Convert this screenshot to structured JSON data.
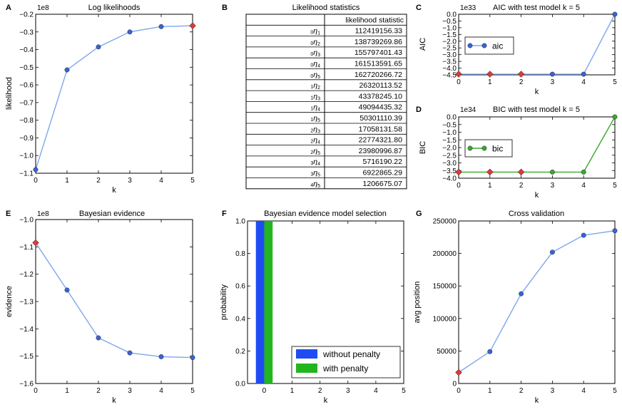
{
  "chart_data": [
    {
      "panel": "A",
      "type": "line",
      "title": "Log likelihoods",
      "xlabel": "k",
      "ylabel": "likelihood",
      "multiplier": "1e8",
      "x": [
        0,
        1,
        2,
        3,
        4,
        5
      ],
      "series": [
        {
          "name": "likelihood",
          "values": [
            -1.08,
            -0.515,
            -0.385,
            -0.3,
            -0.27,
            -0.265
          ],
          "color": "#3b63d6",
          "line_color": "#7ea6ee"
        }
      ],
      "highlight": {
        "index": 5,
        "color": "#d93b3b"
      },
      "xlim": [
        0,
        5
      ],
      "ylim": [
        -1.1,
        -0.2
      ],
      "yticks": [
        -1.1,
        -1.0,
        -0.9,
        -0.8,
        -0.7,
        -0.6,
        -0.5,
        -0.4,
        -0.3,
        -0.2
      ],
      "yticklabels": [
        "−1.1",
        "−1.0",
        "−0.9",
        "−0.8",
        "−0.7",
        "−0.6",
        "−0.5",
        "−0.4",
        "−0.3",
        "−0.2"
      ]
    },
    {
      "panel": "B",
      "type": "table",
      "title": "Likelihood statistics",
      "header": "likelihood statistic",
      "rows": [
        {
          "pre": "0",
          "sub": "1",
          "value": "112419156.33"
        },
        {
          "pre": "0",
          "sub": "2",
          "value": "138739269.86"
        },
        {
          "pre": "0",
          "sub": "3",
          "value": "155797401.43"
        },
        {
          "pre": "0",
          "sub": "4",
          "value": "161513591.65"
        },
        {
          "pre": "0",
          "sub": "5",
          "value": "162720266.72"
        },
        {
          "pre": "1",
          "sub": "2",
          "value": "26320113.52"
        },
        {
          "pre": "1",
          "sub": "3",
          "value": "43378245.10"
        },
        {
          "pre": "1",
          "sub": "4",
          "value": "49094435.32"
        },
        {
          "pre": "1",
          "sub": "5",
          "value": "50301110.39"
        },
        {
          "pre": "2",
          "sub": "3",
          "value": "17058131.58"
        },
        {
          "pre": "2",
          "sub": "4",
          "value": "22774321.80"
        },
        {
          "pre": "2",
          "sub": "5",
          "value": "23980996.87"
        },
        {
          "pre": "3",
          "sub": "4",
          "value": "5716190.22"
        },
        {
          "pre": "3",
          "sub": "5",
          "value": "6922865.29"
        },
        {
          "pre": "4",
          "sub": "5",
          "value": "1206675.07"
        }
      ]
    },
    {
      "panel": "C",
      "type": "line",
      "title": "AIC with test model k = 5",
      "xlabel": "k",
      "ylabel": "AIC",
      "multiplier": "1e33",
      "x": [
        0,
        1,
        2,
        3,
        4,
        5
      ],
      "series": [
        {
          "name": "aic",
          "values": [
            -4.45,
            -4.45,
            -4.45,
            -4.45,
            -4.45,
            0.0
          ],
          "color": "#3b63d6",
          "line_color": "#7ea6ee"
        }
      ],
      "highlight_indices": [
        0,
        1,
        2
      ],
      "highlight_color": "#d93b3b",
      "legend": "aic",
      "xlim": [
        0,
        5
      ],
      "ylim": [
        -4.5,
        0.0
      ],
      "yticks": [
        -4.5,
        -4.0,
        -3.5,
        -3.0,
        -2.5,
        -2.0,
        -1.5,
        -1.0,
        -0.5,
        0.0
      ],
      "yticklabels": [
        "−4.5",
        "−4.0",
        "−3.5",
        "−3.0",
        "−2.5",
        "−2.0",
        "−1.5",
        "−1.0",
        "−0.5",
        "0.0"
      ]
    },
    {
      "panel": "D",
      "type": "line",
      "title": "BIC with test model k = 5",
      "xlabel": "k",
      "ylabel": "BIC",
      "multiplier": "1e34",
      "x": [
        0,
        1,
        2,
        3,
        4,
        5
      ],
      "series": [
        {
          "name": "bic",
          "values": [
            -3.6,
            -3.6,
            -3.6,
            -3.6,
            -3.6,
            0.0
          ],
          "color": "#3aa82f",
          "line_color": "#3aa82f"
        }
      ],
      "highlight_indices": [
        0,
        1,
        2
      ],
      "highlight_color": "#d93b3b",
      "legend": "bic",
      "xlim": [
        0,
        5
      ],
      "ylim": [
        -4.0,
        0.0
      ],
      "yticks": [
        -4.0,
        -3.5,
        -3.0,
        -2.5,
        -2.0,
        -1.5,
        -1.0,
        -0.5,
        0.0
      ],
      "yticklabels": [
        "−4.0",
        "−3.5",
        "−3.0",
        "−2.5",
        "−2.0",
        "−1.5",
        "−1.0",
        "−0.5",
        "0.0"
      ]
    },
    {
      "panel": "E",
      "type": "line",
      "title": "Bayesian evidence",
      "xlabel": "k",
      "ylabel": "evidence",
      "multiplier": "1e8",
      "x": [
        0,
        1,
        2,
        3,
        4,
        5
      ],
      "series": [
        {
          "name": "evidence",
          "values": [
            -1.085,
            -1.258,
            -1.433,
            -1.488,
            -1.502,
            -1.505
          ],
          "color": "#3b63d6",
          "line_color": "#7ea6ee"
        }
      ],
      "highlight": {
        "index": 0,
        "color": "#d93b3b"
      },
      "xlim": [
        0,
        5
      ],
      "ylim": [
        -1.6,
        -1.0
      ],
      "yticks": [
        -1.6,
        -1.5,
        -1.4,
        -1.3,
        -1.2,
        -1.1,
        -1.0
      ],
      "yticklabels": [
        "−1.6",
        "−1.5",
        "−1.4",
        "−1.3",
        "−1.2",
        "−1.1",
        "−1.0"
      ]
    },
    {
      "panel": "F",
      "type": "bar",
      "title": "Bayesian evidence model selection",
      "xlabel": "k",
      "ylabel": "probability",
      "categories": [
        0,
        1,
        2,
        3,
        4,
        5
      ],
      "series": [
        {
          "name": "without penalty",
          "values": [
            1.0,
            0,
            0,
            0,
            0,
            0
          ],
          "color": "#1f4cf2"
        },
        {
          "name": "with penalty",
          "values": [
            1.0,
            0,
            0,
            0,
            0,
            0
          ],
          "color": "#22b51f"
        }
      ],
      "xlim": [
        -0.6,
        5
      ],
      "ylim": [
        0,
        1.0
      ],
      "yticks": [
        0.0,
        0.2,
        0.4,
        0.6,
        0.8,
        1.0
      ],
      "yticklabels": [
        "0.0",
        "0.2",
        "0.4",
        "0.6",
        "0.8",
        "1.0"
      ],
      "legend_position": "bottom-right"
    },
    {
      "panel": "G",
      "type": "line",
      "title": "Cross validation",
      "xlabel": "k",
      "ylabel": "avg position",
      "x": [
        0,
        1,
        2,
        3,
        4,
        5
      ],
      "series": [
        {
          "name": "avg position",
          "values": [
            17000,
            49000,
            138000,
            202000,
            228000,
            235000
          ],
          "color": "#3b63d6",
          "line_color": "#7ea6ee"
        }
      ],
      "highlight": {
        "index": 0,
        "color": "#d93b3b"
      },
      "xlim": [
        0,
        5
      ],
      "ylim": [
        0,
        250000
      ],
      "yticks": [
        0,
        50000,
        100000,
        150000,
        200000,
        250000
      ],
      "yticklabels": [
        "0",
        "50000",
        "100000",
        "150000",
        "200000",
        "250000"
      ]
    }
  ],
  "xticklabels": [
    "0",
    "1",
    "2",
    "3",
    "4",
    "5"
  ],
  "table_eta": "η"
}
